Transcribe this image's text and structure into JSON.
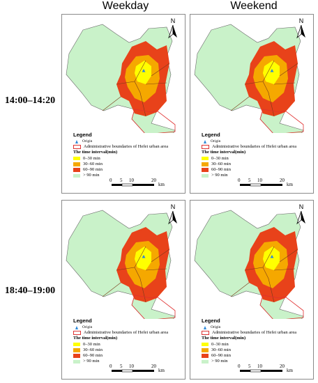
{
  "columns": [
    "Weekday",
    "Weekend"
  ],
  "rows": [
    "14:00–14:20",
    "18:40–19:00"
  ],
  "north_label": "N",
  "legend": {
    "title": "Legend",
    "origin": "Origin",
    "boundary": "Administrative boundaries of Hefei urban area",
    "interval_title": "The time interval(min)",
    "classes": [
      {
        "label": "0–30 min",
        "color": "#ffff00"
      },
      {
        "label": "30–60 min",
        "color": "#f5a800"
      },
      {
        "label": "60–90 min",
        "color": "#e8421a"
      },
      {
        "label": "> 90 min",
        "color": "#c9f2c9"
      }
    ]
  },
  "scale_bar": {
    "ticks": [
      "0",
      "5",
      "10",
      "20"
    ],
    "unit": "km"
  },
  "colors": {
    "boundary": "#e03030",
    "origin": "#2e88d8",
    "panel_border": "#8a8a8a"
  },
  "panels": [
    {
      "column": "Weekday",
      "row": "14:00–14:20"
    },
    {
      "column": "Weekend",
      "row": "14:00–14:20"
    },
    {
      "column": "Weekday",
      "row": "18:40–19:00"
    },
    {
      "column": "Weekend",
      "row": "18:40–19:00"
    }
  ]
}
